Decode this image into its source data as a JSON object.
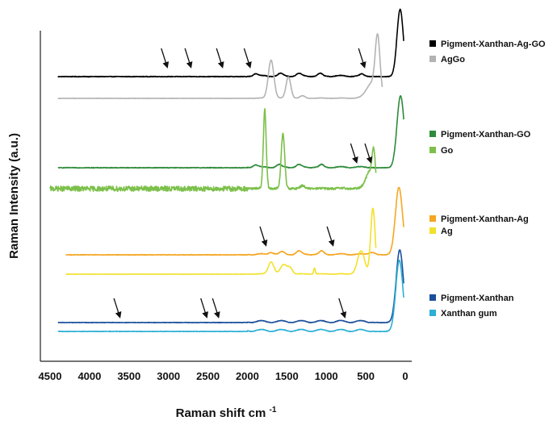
{
  "chart_data": {
    "type": "line",
    "title": "",
    "xlabel": "Raman shift cm",
    "xlabel_superscript": "-1",
    "ylabel": "Raman Intensity (a.u.)",
    "x_reversed": true,
    "xlim": [
      4500,
      0
    ],
    "x_ticks": [
      4500,
      4000,
      3500,
      3000,
      2500,
      2000,
      1500,
      1000,
      500,
      0
    ],
    "y_ticks": [],
    "grid": false,
    "legend_position": "right",
    "series": [
      {
        "name": "Pigment-Xanthan-Ag-GO",
        "color": "#000000",
        "group": 1,
        "noise": 0.8,
        "ripple": 0.9,
        "peaks": [
          [
            1900,
            3,
            30
          ],
          [
            1580,
            3,
            30
          ],
          [
            1350,
            3,
            30
          ],
          [
            1080,
            3,
            25
          ],
          [
            550,
            2,
            25
          ],
          [
            65,
            88,
            40
          ]
        ]
      },
      {
        "name": "AgGo",
        "color": "#b3b3b3",
        "group": 1,
        "noise": 0.4,
        "ripple": 0.3,
        "peaks": [
          [
            1700,
            50,
            35
          ],
          [
            1480,
            28,
            30
          ],
          [
            1300,
            3,
            30
          ],
          [
            420,
            20,
            70
          ],
          [
            350,
            72,
            30
          ]
        ]
      },
      {
        "name": "Pigment-Xanthan-GO",
        "color": "#2e8b3a",
        "group": 2,
        "noise": 0.8,
        "ripple": 0.8,
        "peaks": [
          [
            1900,
            3,
            30
          ],
          [
            1600,
            3,
            30
          ],
          [
            1350,
            3,
            30
          ],
          [
            1060,
            3,
            25
          ],
          [
            60,
            92,
            45
          ]
        ]
      },
      {
        "name": "Go",
        "color": "#7cc04b",
        "group": 2,
        "noise": 2.5,
        "ripple": 0.3,
        "peaks": [
          [
            1780,
            92,
            18
          ],
          [
            1550,
            64,
            22
          ],
          [
            1300,
            3,
            30
          ],
          [
            450,
            20,
            50
          ],
          [
            400,
            36,
            20
          ]
        ]
      },
      {
        "name": "Pigment-Xanthan-Ag",
        "color": "#f5a623",
        "group": 3,
        "noise": 0.7,
        "ripple": 0.8,
        "peaks": [
          [
            1700,
            3,
            30
          ],
          [
            1560,
            3,
            30
          ],
          [
            1350,
            4,
            30
          ],
          [
            1060,
            4,
            25
          ],
          [
            420,
            3,
            40
          ],
          [
            80,
            88,
            45
          ]
        ]
      },
      {
        "name": "Ag",
        "color": "#f2e12b",
        "group": 3,
        "noise": 0.4,
        "ripple": 0.3,
        "peaks": [
          [
            1700,
            16,
            35
          ],
          [
            1540,
            12,
            40
          ],
          [
            1460,
            8,
            30
          ],
          [
            1150,
            8,
            10
          ],
          [
            560,
            30,
            45
          ],
          [
            410,
            86,
            28
          ]
        ]
      },
      {
        "name": "Pigment-Xanthan",
        "color": "#1b4f9c",
        "group": 4,
        "noise": 0.6,
        "ripple": 1.4,
        "peaks": [
          [
            70,
            92,
            45
          ]
        ]
      },
      {
        "name": "Xanthan gum",
        "color": "#2bafd6",
        "group": 4,
        "noise": 0.6,
        "ripple": 1.4,
        "peaks": [
          [
            75,
            90,
            45
          ]
        ]
      }
    ],
    "annotations": [
      {
        "type": "arrow",
        "group": 1,
        "x": [
          3050,
          2750,
          2350,
          2000,
          550
        ]
      },
      {
        "type": "arrow",
        "group": 2,
        "x": [
          650,
          470
        ]
      },
      {
        "type": "arrow",
        "group": 3,
        "x": [
          1800,
          950
        ]
      },
      {
        "type": "arrow",
        "group": 4,
        "x": [
          3650,
          2550,
          2400,
          800
        ]
      }
    ]
  }
}
